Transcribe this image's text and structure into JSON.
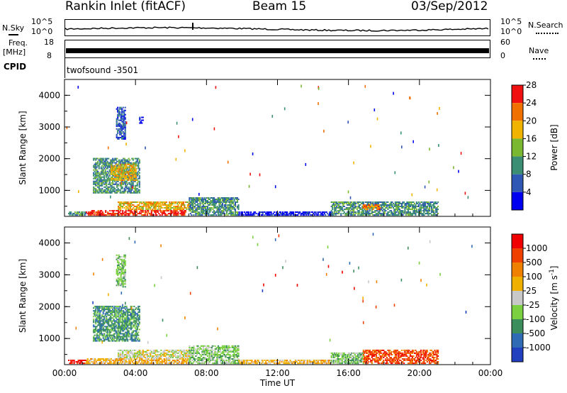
{
  "header": {
    "station": "Rankin Inlet (fitACF)",
    "beam": "Beam 15",
    "date": "03/Sep/2012"
  },
  "top_panels": {
    "nsky_label": "N.Sky",
    "nsearch_label": "N.Search",
    "nsky_ticks": [
      "10^5",
      "10^0"
    ],
    "nsearch_ticks": [
      "10^5",
      "10^0"
    ],
    "freq_label": "Freq.",
    "freq_unit": "[MHz]",
    "freq_ticks": [
      "18",
      "8"
    ],
    "nave_label": "Nave",
    "nave_ticks": [
      "60",
      "0"
    ],
    "cpid_label": "CPID",
    "cpid_value": "twofsound  -3501"
  },
  "chart_data": [
    {
      "type": "heatmap",
      "name": "power",
      "ylabel": "Slant Range [km]",
      "y_ticks": [
        1000,
        2000,
        3000,
        4000
      ],
      "ylim": [
        180,
        4500
      ],
      "x_ticks": [
        "00:00",
        "04:00",
        "08:00",
        "12:00",
        "16:00",
        "20:00",
        "00:00"
      ],
      "xlim_hours": [
        0,
        24
      ],
      "colorbar": {
        "label": "Power [dB]",
        "ticks": [
          "4",
          "8",
          "12",
          "16",
          "20",
          "24",
          "28"
        ],
        "colors": [
          "#0000f0",
          "#2f58b4",
          "#3b8e74",
          "#7ab832",
          "#f0b400",
          "#f07000",
          "#f01010"
        ]
      },
      "echo_regions": [
        {
          "t0": 0.2,
          "t1": 1.2,
          "r0": 200,
          "r1": 320,
          "level": 2
        },
        {
          "t0": 1.6,
          "t1": 4.2,
          "r0": 900,
          "r1": 2000,
          "level": 2
        },
        {
          "t0": 2.6,
          "t1": 4.0,
          "r0": 1300,
          "r1": 1800,
          "level": 4
        },
        {
          "t0": 2.9,
          "t1": 3.4,
          "r0": 2600,
          "r1": 3600,
          "level": 1
        },
        {
          "t0": 4.2,
          "t1": 4.4,
          "r0": 3100,
          "r1": 3300,
          "level": 0
        },
        {
          "t0": 1.2,
          "t1": 6.8,
          "r0": 200,
          "r1": 380,
          "level": 6
        },
        {
          "t0": 3.0,
          "t1": 7.2,
          "r0": 380,
          "r1": 620,
          "level": 4
        },
        {
          "t0": 7.0,
          "t1": 9.8,
          "r0": 200,
          "r1": 750,
          "level": 2
        },
        {
          "t0": 9.8,
          "t1": 15.0,
          "r0": 200,
          "r1": 320,
          "level": 0
        },
        {
          "t0": 15.0,
          "t1": 21.0,
          "r0": 200,
          "r1": 620,
          "level": 2
        },
        {
          "t0": 16.8,
          "t1": 17.8,
          "r0": 380,
          "r1": 560,
          "level": 5
        }
      ]
    },
    {
      "type": "heatmap",
      "name": "velocity",
      "ylabel": "Slant Range [km]",
      "y_ticks": [
        1000,
        2000,
        3000,
        4000
      ],
      "ylim": [
        180,
        4500
      ],
      "x_ticks": [
        "00:00",
        "04:00",
        "08:00",
        "12:00",
        "16:00",
        "20:00",
        "00:00"
      ],
      "xlim_hours": [
        0,
        24
      ],
      "xlabel": "Time UT",
      "colorbar": {
        "label": "Velocity [m s",
        "label_sup": "-1",
        "label_end": "]",
        "ticks": [
          "1000",
          "500",
          "100",
          "25",
          "-25",
          "-100",
          "-500",
          "-1000"
        ],
        "colors": [
          "#2040c0",
          "#2e6bb4",
          "#3b8e5c",
          "#7ad040",
          "#c8c8c8",
          "#f0b000",
          "#f08000",
          "#f04000",
          "#f00000"
        ]
      },
      "echo_regions": [
        {
          "t0": 0.2,
          "t1": 1.2,
          "r0": 200,
          "r1": 320,
          "level": 8
        },
        {
          "t0": 1.6,
          "t1": 4.2,
          "r0": 900,
          "r1": 2000,
          "level": 2
        },
        {
          "t0": 2.9,
          "t1": 3.4,
          "r0": 2600,
          "r1": 3600,
          "level": 3
        },
        {
          "t0": 1.2,
          "t1": 7.0,
          "r0": 200,
          "r1": 380,
          "level": 5
        },
        {
          "t0": 3.0,
          "t1": 7.2,
          "r0": 380,
          "r1": 620,
          "level": 4
        },
        {
          "t0": 7.0,
          "t1": 9.8,
          "r0": 200,
          "r1": 750,
          "level": 3
        },
        {
          "t0": 9.8,
          "t1": 15.0,
          "r0": 200,
          "r1": 320,
          "level": 5
        },
        {
          "t0": 15.0,
          "t1": 16.8,
          "r0": 200,
          "r1": 560,
          "level": 3
        },
        {
          "t0": 16.8,
          "t1": 21.0,
          "r0": 200,
          "r1": 620,
          "level": 7
        }
      ]
    }
  ]
}
